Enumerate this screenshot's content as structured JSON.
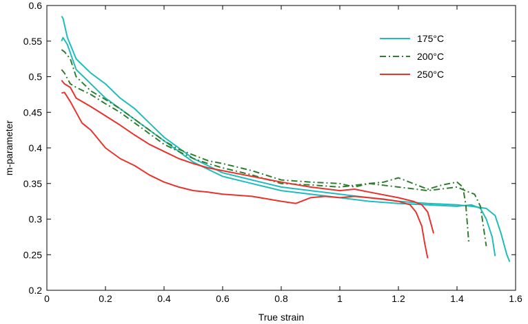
{
  "chart_data": {
    "type": "line",
    "title": "",
    "xlabel": "True strain",
    "ylabel": "m-parameter",
    "xlim": [
      0,
      1.6
    ],
    "ylim": [
      0.2,
      0.6
    ],
    "xticks": [
      "0",
      "0.2",
      "0.4",
      "0.6",
      "0.8",
      "1",
      "1.2",
      "1.4",
      "1.6"
    ],
    "yticks": [
      "0.2",
      "0.25",
      "0.3",
      "0.35",
      "0.4",
      "0.45",
      "0.5",
      "0.55",
      "0.6"
    ],
    "grid": false,
    "legend_position": "top-right",
    "legend": [
      {
        "label": "175°C",
        "color": "#1fbcbc",
        "dash": "solid"
      },
      {
        "label": "200°C",
        "color": "#2e7d2e",
        "dash": "dashdot"
      },
      {
        "label": "250°C",
        "color": "#e8322a",
        "dash": "solid"
      }
    ],
    "series": [
      {
        "group": 0,
        "color": "#1fbcbc",
        "dash": "solid",
        "points": [
          [
            0.05,
            0.585
          ],
          [
            0.055,
            0.582
          ],
          [
            0.07,
            0.555
          ],
          [
            0.1,
            0.525
          ],
          [
            0.15,
            0.505
          ],
          [
            0.2,
            0.49
          ],
          [
            0.25,
            0.47
          ],
          [
            0.3,
            0.455
          ],
          [
            0.35,
            0.435
          ],
          [
            0.4,
            0.415
          ],
          [
            0.45,
            0.4
          ],
          [
            0.5,
            0.385
          ],
          [
            0.55,
            0.375
          ],
          [
            0.6,
            0.365
          ],
          [
            0.7,
            0.355
          ],
          [
            0.8,
            0.345
          ],
          [
            0.9,
            0.34
          ],
          [
            1.0,
            0.335
          ],
          [
            1.1,
            0.33
          ],
          [
            1.2,
            0.325
          ],
          [
            1.3,
            0.322
          ],
          [
            1.4,
            0.32
          ],
          [
            1.45,
            0.318
          ],
          [
            1.5,
            0.315
          ],
          [
            1.53,
            0.305
          ],
          [
            1.55,
            0.28
          ],
          [
            1.57,
            0.25
          ],
          [
            1.58,
            0.24
          ]
        ]
      },
      {
        "group": 0,
        "color": "#1fbcbc",
        "dash": "solid",
        "points": [
          [
            0.05,
            0.55
          ],
          [
            0.055,
            0.555
          ],
          [
            0.07,
            0.545
          ],
          [
            0.1,
            0.51
          ],
          [
            0.15,
            0.49
          ],
          [
            0.2,
            0.47
          ],
          [
            0.25,
            0.455
          ],
          [
            0.3,
            0.44
          ],
          [
            0.35,
            0.425
          ],
          [
            0.4,
            0.41
          ],
          [
            0.45,
            0.395
          ],
          [
            0.5,
            0.38
          ],
          [
            0.55,
            0.37
          ],
          [
            0.6,
            0.36
          ],
          [
            0.7,
            0.35
          ],
          [
            0.8,
            0.34
          ],
          [
            0.9,
            0.335
          ],
          [
            1.0,
            0.33
          ],
          [
            1.1,
            0.325
          ],
          [
            1.2,
            0.322
          ],
          [
            1.3,
            0.32
          ],
          [
            1.4,
            0.318
          ],
          [
            1.45,
            0.32
          ],
          [
            1.48,
            0.315
          ],
          [
            1.5,
            0.3
          ],
          [
            1.52,
            0.275
          ],
          [
            1.53,
            0.248
          ]
        ]
      },
      {
        "group": 1,
        "color": "#2e7d2e",
        "dash": "dashdot",
        "points": [
          [
            0.05,
            0.538
          ],
          [
            0.06,
            0.535
          ],
          [
            0.08,
            0.525
          ],
          [
            0.1,
            0.5
          ],
          [
            0.15,
            0.48
          ],
          [
            0.2,
            0.468
          ],
          [
            0.25,
            0.455
          ],
          [
            0.3,
            0.44
          ],
          [
            0.35,
            0.425
          ],
          [
            0.4,
            0.41
          ],
          [
            0.45,
            0.398
          ],
          [
            0.5,
            0.39
          ],
          [
            0.55,
            0.382
          ],
          [
            0.6,
            0.378
          ],
          [
            0.7,
            0.368
          ],
          [
            0.8,
            0.355
          ],
          [
            0.9,
            0.352
          ],
          [
            1.0,
            0.35
          ],
          [
            1.05,
            0.345
          ],
          [
            1.1,
            0.35
          ],
          [
            1.15,
            0.352
          ],
          [
            1.2,
            0.358
          ],
          [
            1.25,
            0.35
          ],
          [
            1.3,
            0.342
          ],
          [
            1.35,
            0.348
          ],
          [
            1.4,
            0.352
          ],
          [
            1.42,
            0.345
          ],
          [
            1.43,
            0.32
          ],
          [
            1.44,
            0.268
          ]
        ]
      },
      {
        "group": 1,
        "color": "#2e7d2e",
        "dash": "dashdot",
        "points": [
          [
            0.05,
            0.51
          ],
          [
            0.06,
            0.505
          ],
          [
            0.08,
            0.49
          ],
          [
            0.1,
            0.485
          ],
          [
            0.15,
            0.475
          ],
          [
            0.2,
            0.462
          ],
          [
            0.25,
            0.45
          ],
          [
            0.3,
            0.435
          ],
          [
            0.35,
            0.42
          ],
          [
            0.4,
            0.405
          ],
          [
            0.45,
            0.395
          ],
          [
            0.5,
            0.385
          ],
          [
            0.55,
            0.378
          ],
          [
            0.6,
            0.372
          ],
          [
            0.7,
            0.362
          ],
          [
            0.8,
            0.35
          ],
          [
            0.9,
            0.348
          ],
          [
            1.0,
            0.345
          ],
          [
            1.1,
            0.35
          ],
          [
            1.2,
            0.345
          ],
          [
            1.3,
            0.34
          ],
          [
            1.4,
            0.345
          ],
          [
            1.44,
            0.338
          ],
          [
            1.46,
            0.335
          ],
          [
            1.48,
            0.318
          ],
          [
            1.49,
            0.29
          ],
          [
            1.5,
            0.262
          ]
        ]
      },
      {
        "group": 2,
        "color": "#e8322a",
        "dash": "solid",
        "points": [
          [
            0.05,
            0.495
          ],
          [
            0.06,
            0.49
          ],
          [
            0.08,
            0.485
          ],
          [
            0.1,
            0.47
          ],
          [
            0.15,
            0.458
          ],
          [
            0.2,
            0.445
          ],
          [
            0.25,
            0.432
          ],
          [
            0.3,
            0.418
          ],
          [
            0.35,
            0.405
          ],
          [
            0.4,
            0.395
          ],
          [
            0.45,
            0.385
          ],
          [
            0.5,
            0.378
          ],
          [
            0.55,
            0.372
          ],
          [
            0.6,
            0.368
          ],
          [
            0.7,
            0.36
          ],
          [
            0.8,
            0.352
          ],
          [
            0.9,
            0.345
          ],
          [
            1.0,
            0.34
          ],
          [
            1.05,
            0.342
          ],
          [
            1.1,
            0.338
          ],
          [
            1.2,
            0.33
          ],
          [
            1.25,
            0.325
          ],
          [
            1.28,
            0.32
          ],
          [
            1.3,
            0.31
          ],
          [
            1.31,
            0.295
          ],
          [
            1.32,
            0.28
          ]
        ]
      },
      {
        "group": 2,
        "color": "#e8322a",
        "dash": "solid",
        "points": [
          [
            0.05,
            0.477
          ],
          [
            0.06,
            0.478
          ],
          [
            0.08,
            0.465
          ],
          [
            0.1,
            0.45
          ],
          [
            0.12,
            0.435
          ],
          [
            0.15,
            0.425
          ],
          [
            0.2,
            0.4
          ],
          [
            0.25,
            0.385
          ],
          [
            0.3,
            0.375
          ],
          [
            0.35,
            0.362
          ],
          [
            0.4,
            0.352
          ],
          [
            0.45,
            0.345
          ],
          [
            0.5,
            0.34
          ],
          [
            0.55,
            0.338
          ],
          [
            0.6,
            0.335
          ],
          [
            0.7,
            0.332
          ],
          [
            0.8,
            0.325
          ],
          [
            0.85,
            0.322
          ],
          [
            0.9,
            0.33
          ],
          [
            0.95,
            0.332
          ],
          [
            1.0,
            0.33
          ],
          [
            1.05,
            0.332
          ],
          [
            1.1,
            0.33
          ],
          [
            1.15,
            0.328
          ],
          [
            1.2,
            0.325
          ],
          [
            1.24,
            0.32
          ],
          [
            1.26,
            0.31
          ],
          [
            1.28,
            0.29
          ],
          [
            1.29,
            0.265
          ],
          [
            1.3,
            0.245
          ]
        ]
      }
    ]
  }
}
